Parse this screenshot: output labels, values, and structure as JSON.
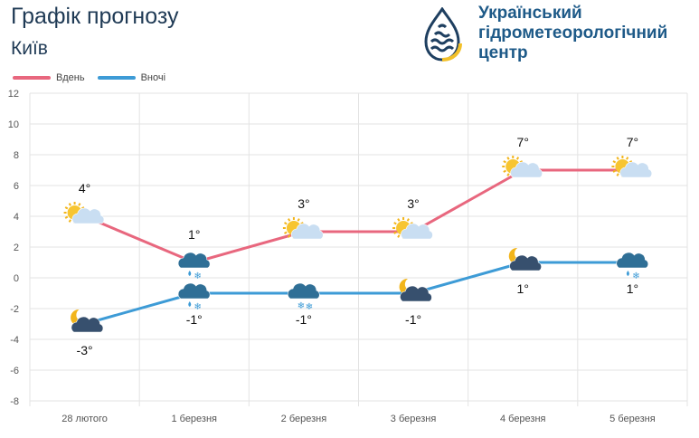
{
  "header": {
    "title": "Графік прогнозу",
    "city": "Київ",
    "org_line1": "Український",
    "org_line2": "гідрометеорологічний",
    "org_line3": "центр"
  },
  "colors": {
    "day": "#e8677e",
    "night": "#3d9bd6",
    "grid": "#e3e3e3",
    "title": "#1f3a55",
    "org": "#1e5a88"
  },
  "chart_data": {
    "type": "line",
    "categories": [
      "28 лютого",
      "1 березня",
      "2 березня",
      "3 березня",
      "4 березня",
      "5 березня"
    ],
    "series": [
      {
        "name": "Вдень",
        "values": [
          4,
          1,
          3,
          3,
          7,
          7
        ],
        "labels": [
          "4°",
          "1°",
          "3°",
          "3°",
          "7°",
          "7°"
        ],
        "icons": [
          "sun-cloud-icon",
          "rain-snow-cloud-icon",
          "sun-cloud-icon",
          "sun-cloud-icon",
          "sun-cloud-icon",
          "sun-cloud-icon"
        ]
      },
      {
        "name": "Вночі",
        "values": [
          -3,
          -1,
          -1,
          -1,
          1,
          1
        ],
        "labels": [
          "-3°",
          "-1°",
          "-1°",
          "-1°",
          "1°",
          "1°"
        ],
        "icons": [
          "moon-cloud-icon",
          "rain-snow-cloud-icon",
          "snow-cloud-icon",
          "moon-cloud-icon",
          "moon-cloud-icon",
          "rain-snow-cloud-icon"
        ]
      }
    ],
    "ylim": [
      -8,
      12
    ],
    "yticks": [
      -8,
      -6,
      -4,
      -2,
      0,
      2,
      4,
      6,
      8,
      10,
      12
    ],
    "legend": "top-left",
    "grid": true
  }
}
